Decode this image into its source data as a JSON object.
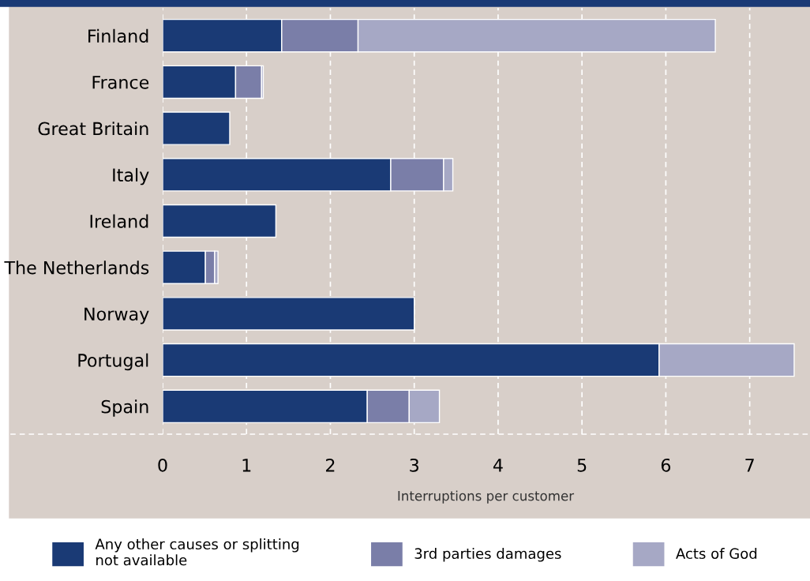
{
  "chart_data": {
    "type": "bar",
    "orientation": "horizontal",
    "stacked": true,
    "categories": [
      "Finland",
      "France",
      "Great Britain",
      "Italy",
      "Ireland",
      "The Netherlands",
      "Norway",
      "Portugal",
      "Spain"
    ],
    "series": [
      {
        "name": "Any other causes or splitting not available",
        "color": "#1a3a75",
        "values": [
          1.42,
          0.87,
          0.8,
          2.72,
          1.35,
          0.51,
          3.0,
          5.92,
          2.44
        ]
      },
      {
        "name": "3rd parties damages",
        "color": "#7a7ea8",
        "values": [
          0.91,
          0.31,
          null,
          0.63,
          null,
          0.11,
          null,
          null,
          0.5
        ]
      },
      {
        "name": "Acts of God",
        "color": "#a6a8c5",
        "values": [
          4.26,
          0.02,
          null,
          0.11,
          null,
          0.04,
          null,
          1.61,
          0.36
        ]
      }
    ],
    "xlabel": "Interruptions per customer",
    "xlim": [
      0,
      7.7
    ],
    "xticks": [
      0,
      1,
      2,
      3,
      4,
      5,
      6,
      7
    ],
    "grid": "x",
    "legend": "bottom"
  }
}
